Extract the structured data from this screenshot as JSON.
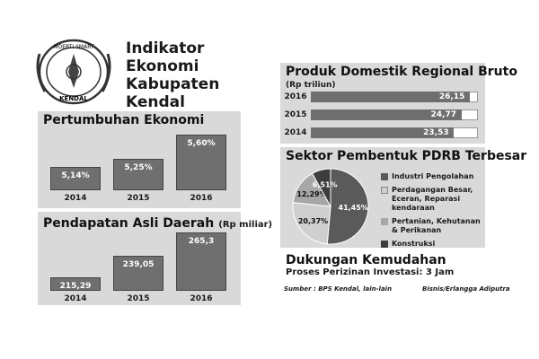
{
  "header": {
    "title_lines": [
      "Indikator",
      "Ekonomi",
      "Kabupaten",
      "Kendal"
    ],
    "logo_text_top": "MOERTI SMART",
    "logo_text_bottom": "KENDAL"
  },
  "colors": {
    "bar": "#6f6f6f",
    "panel": "#d9d9d9",
    "pie_dark": "#5a5a5a",
    "pie_mid": "#a7a7a7",
    "pie_light": "#cfcfcf",
    "pie_darkest": "#3d3d3d"
  },
  "growth": {
    "title": "Pertumbuhan Ekonomi",
    "labels": [
      "5,14%",
      "5,25%",
      "5,60%"
    ],
    "years": [
      "2014",
      "2015",
      "2016"
    ]
  },
  "pad": {
    "title": "Pendapatan Asli Daerah",
    "unit": "(Rp miliar)",
    "labels": [
      "215,29",
      "239,05",
      "265,3"
    ],
    "years": [
      "2014",
      "2015",
      "2016"
    ]
  },
  "pdrb": {
    "title": "Produk Domestik Regional Bruto",
    "unit": "(Rp triliun)",
    "years": [
      "2016",
      "2015",
      "2014"
    ],
    "labels": [
      "26,15",
      "24,77",
      "23,53"
    ]
  },
  "sectors": {
    "title": "Sektor Pembentuk PDRB Terbesar",
    "slice_labels": [
      "41,45%",
      "20,37%",
      "12,29%",
      "6,51%"
    ],
    "legend": [
      "Industri Pengolahan",
      "Perdagangan Besar, Eceran, Reparasi kendaraan",
      "Pertanian, Kehutanan & Perikanan",
      "Konstruksi"
    ]
  },
  "support": {
    "title": "Dukungan Kemudahan",
    "subtitle": "Proses Perizinan Investasi: 3 Jam"
  },
  "footer": {
    "source": "Sumber : BPS Kendal, lain-lain",
    "credit": "Bisnis/Erlangga Adiputra"
  },
  "chart_data": [
    {
      "type": "bar",
      "title": "Pertumbuhan Ekonomi",
      "categories": [
        "2014",
        "2015",
        "2016"
      ],
      "values": [
        5.14,
        5.25,
        5.6
      ],
      "ylim": [
        4.8,
        5.7
      ]
    },
    {
      "type": "bar",
      "title": "Pendapatan Asli Daerah",
      "ylabel": "(Rp miliar)",
      "categories": [
        "2014",
        "2015",
        "2016"
      ],
      "values": [
        215.29,
        239.05,
        265.3
      ],
      "ylim": [
        200,
        270
      ]
    },
    {
      "type": "bar",
      "orientation": "horizontal",
      "title": "Produk Domestik Regional Bruto",
      "ylabel": "(Rp triliun)",
      "categories": [
        "2016",
        "2015",
        "2014"
      ],
      "values": [
        26.15,
        24.77,
        23.53
      ],
      "xlim": [
        0,
        27.5
      ]
    },
    {
      "type": "pie",
      "title": "Sektor Pembentuk PDRB Terbesar",
      "categories": [
        "Industri Pengolahan",
        "Perdagangan Besar, Eceran, Reparasi kendaraan",
        "Pertanian, Kehutanan & Perikanan",
        "Konstruksi"
      ],
      "values": [
        41.45,
        20.37,
        12.29,
        6.51
      ]
    }
  ]
}
